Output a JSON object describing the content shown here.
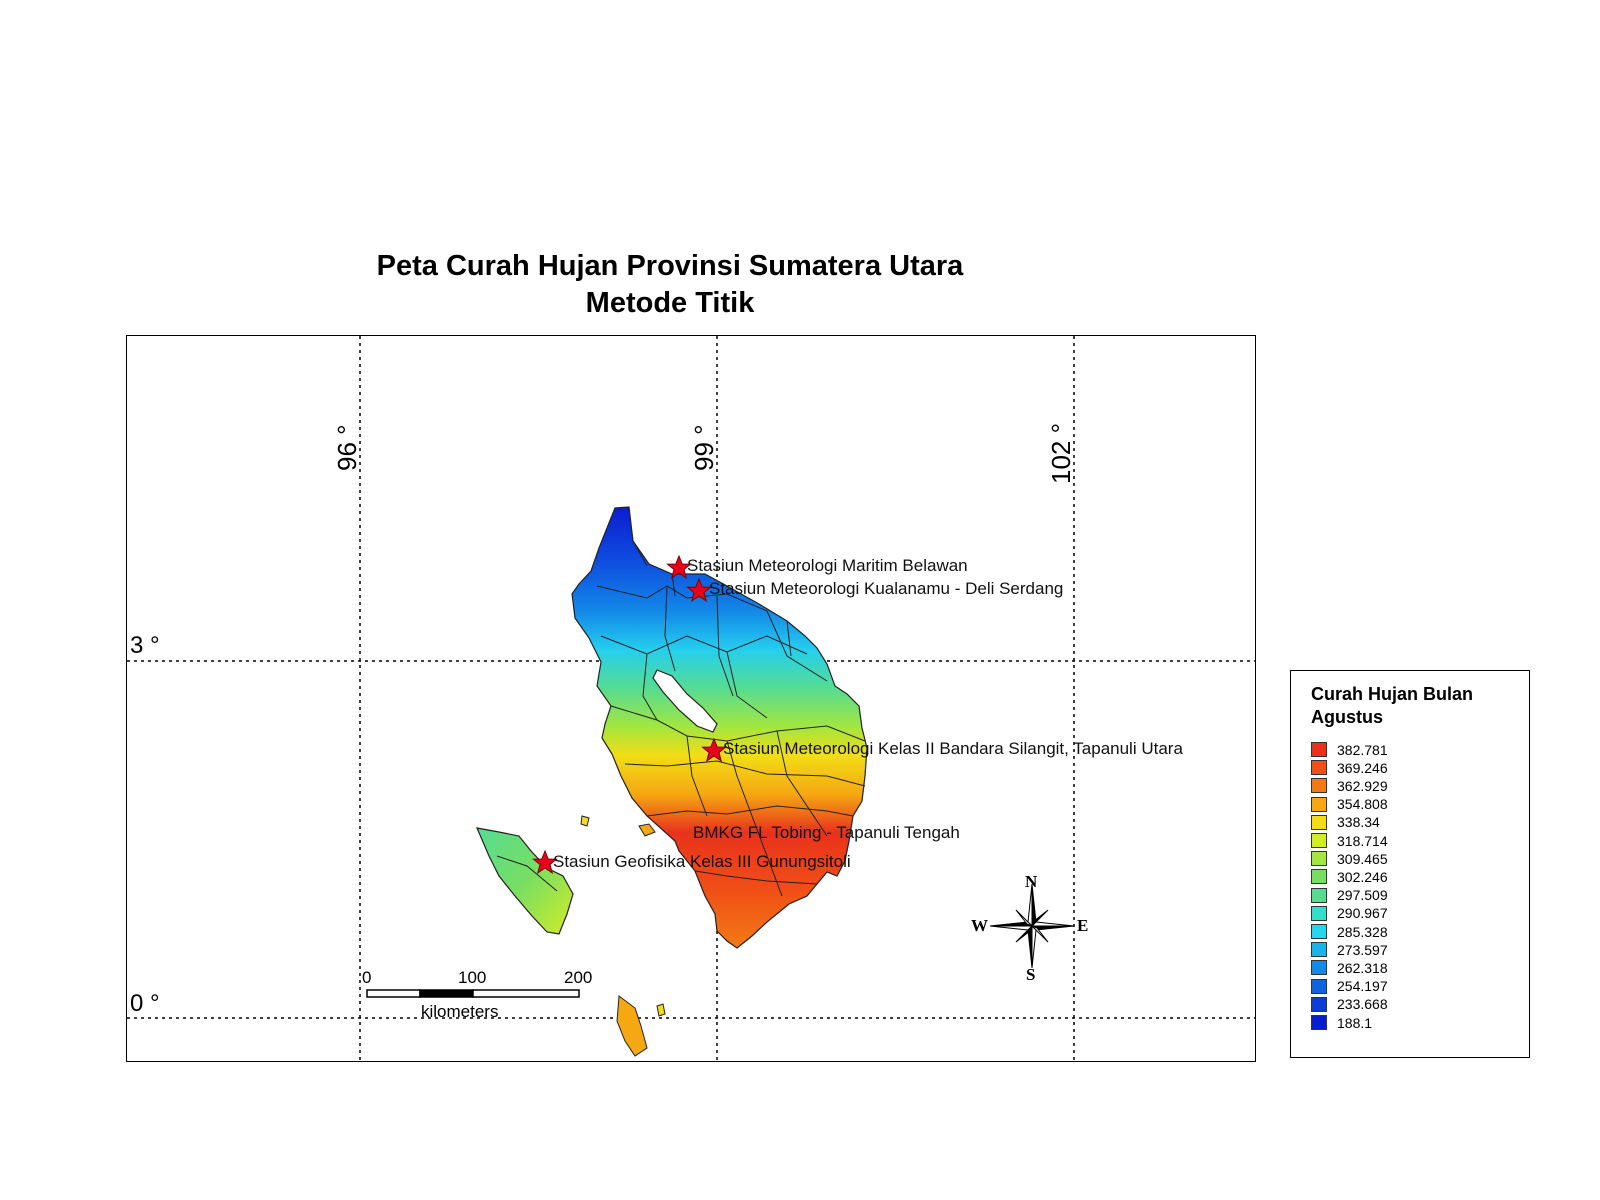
{
  "title_line1": "Peta Curah Hujan Provinsi Sumatera Utara",
  "title_line2": "Metode Titik",
  "grid": {
    "longitudes": [
      "96 °",
      "99 °",
      "102 °"
    ],
    "latitudes": [
      "3 °",
      "0 °"
    ]
  },
  "stations": [
    {
      "name": "Stasiun Meteorologi Maritim Belawan"
    },
    {
      "name": "Stasiun Meteorologi Kualanamu - Deli Serdang"
    },
    {
      "name": "Stasiun Meteorologi Kelas II Bandara Silangit, Tapanuli Utara"
    },
    {
      "name": "BMKG FL Tobing - Tapanuli Tengah"
    },
    {
      "name": "Stasiun Geofisika Kelas III Gunungsitoli"
    }
  ],
  "scale_bar": {
    "ticks": [
      "0",
      "100",
      "200"
    ],
    "unit": "kilometers"
  },
  "compass": {
    "n": "N",
    "s": "S",
    "e": "E",
    "w": "W"
  },
  "legend": {
    "title": "Curah Hujan Bulan Agustus",
    "items": [
      {
        "value": "382.781",
        "color": "#e8321c"
      },
      {
        "value": "369.246",
        "color": "#f04f16"
      },
      {
        "value": "362.929",
        "color": "#f27a14"
      },
      {
        "value": "354.808",
        "color": "#f5a812"
      },
      {
        "value": "338.34",
        "color": "#f2dd16"
      },
      {
        "value": "318.714",
        "color": "#d2ec25"
      },
      {
        "value": "309.465",
        "color": "#a3e63f"
      },
      {
        "value": "302.246",
        "color": "#78de63"
      },
      {
        "value": "297.509",
        "color": "#55dc92"
      },
      {
        "value": "290.967",
        "color": "#33dfc8"
      },
      {
        "value": "285.328",
        "color": "#25d6ee"
      },
      {
        "value": "273.597",
        "color": "#1ab4ec"
      },
      {
        "value": "262.318",
        "color": "#1389e8"
      },
      {
        "value": "254.197",
        "color": "#0f63de"
      },
      {
        "value": "233.668",
        "color": "#0c3ed6"
      },
      {
        "value": "188.1",
        "color": "#0a1cd0"
      }
    ]
  }
}
